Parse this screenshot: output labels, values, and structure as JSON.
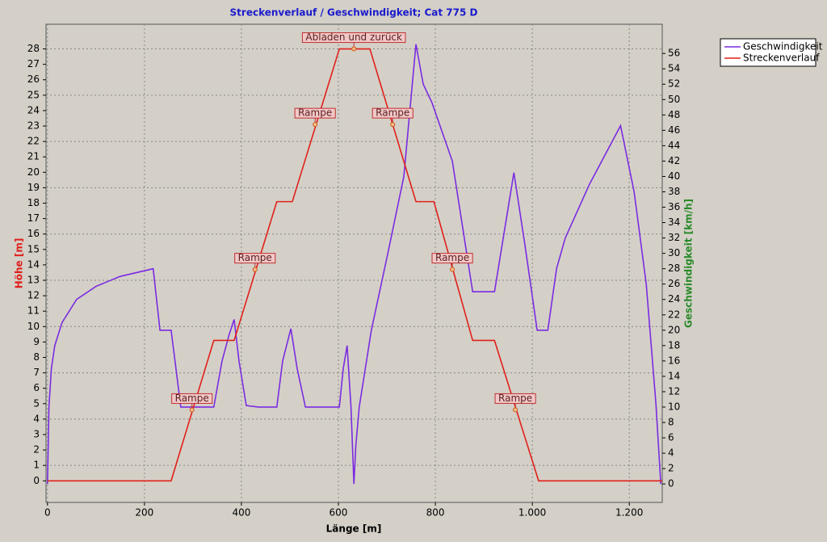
{
  "chart_data": {
    "type": "line",
    "title": "Streckenverlauf / Geschwindigkeit; Cat 775 D",
    "x_label": "Länge [m]",
    "y_label": "Höhe [m]",
    "y2_label": "Geschwindigkeit [km/h]",
    "xlim": [
      -3,
      1268
    ],
    "ylim": [
      -1.4,
      29.6
    ],
    "y2lim": [
      -2.4,
      59.8
    ],
    "xticks": [
      0,
      200,
      400,
      600,
      800,
      {
        "value": 1000,
        "label": "1.000"
      },
      {
        "value": 1200,
        "label": "1.200"
      }
    ],
    "yticks": [
      0,
      1,
      2,
      3,
      4,
      5,
      6,
      7,
      8,
      9,
      10,
      11,
      12,
      13,
      14,
      15,
      16,
      17,
      18,
      19,
      20,
      21,
      22,
      23,
      24,
      25,
      26,
      27,
      28
    ],
    "y2ticks": [
      0,
      2,
      4,
      6,
      8,
      10,
      12,
      14,
      16,
      18,
      20,
      22,
      24,
      26,
      28,
      30,
      32,
      34,
      36,
      38,
      40,
      42,
      44,
      46,
      48,
      50,
      52,
      54,
      56
    ],
    "grid": true,
    "legend": "top-right",
    "series": [
      {
        "name": "Geschwindigkeit",
        "color": "#7a2be0",
        "axis": "y2",
        "x": [
          0,
          3,
          8,
          15,
          30,
          60,
          100,
          150,
          218,
          232,
          255,
          275,
          343,
          360,
          375,
          385,
          395,
          410,
          435,
          473,
          485,
          502,
          515,
          532,
          602,
          610,
          618,
          626,
          632,
          636,
          643,
          668,
          702,
          735,
          760,
          775,
          793,
          835,
          877,
          922,
          962,
          985,
          1010,
          1032,
          1050,
          1068,
          1118,
          1182,
          1210,
          1235,
          1255,
          1265
        ],
        "values": [
          0,
          10,
          15,
          18,
          21,
          24,
          25.7,
          27,
          28,
          20,
          20,
          10,
          10,
          16,
          19.5,
          21.4,
          16,
          10.2,
          10,
          10,
          16,
          20.2,
          15,
          10,
          10,
          15,
          18,
          10,
          0,
          5,
          10,
          20,
          30,
          40,
          57.2,
          52,
          49.6,
          42,
          25,
          25,
          40.5,
          31,
          20,
          20,
          28,
          32,
          39,
          46.6,
          38,
          26,
          10.4,
          0
        ]
      },
      {
        "name": "Streckenverlauf",
        "color": "#e0201a",
        "axis": "y",
        "x": [
          0,
          255,
          343,
          385,
          473,
          505,
          602,
          665,
          760,
          797,
          877,
          922,
          1013,
          1268
        ],
        "values": [
          0,
          0,
          9.1,
          9.1,
          18.1,
          18.1,
          28,
          28,
          18.1,
          18.1,
          9.1,
          9.1,
          0,
          0
        ]
      }
    ],
    "annotations": [
      {
        "text": "Rampe",
        "x": 298,
        "y": 4.6
      },
      {
        "text": "Rampe",
        "x": 428,
        "y": 13.7
      },
      {
        "text": "Rampe",
        "x": 552,
        "y": 23.1
      },
      {
        "text": "Abladen und zurück",
        "x": 632,
        "y": 28
      },
      {
        "text": "Rampe",
        "x": 712,
        "y": 23.1
      },
      {
        "text": "Rampe",
        "x": 835,
        "y": 13.7
      },
      {
        "text": "Rampe",
        "x": 965,
        "y": 4.6
      }
    ]
  }
}
